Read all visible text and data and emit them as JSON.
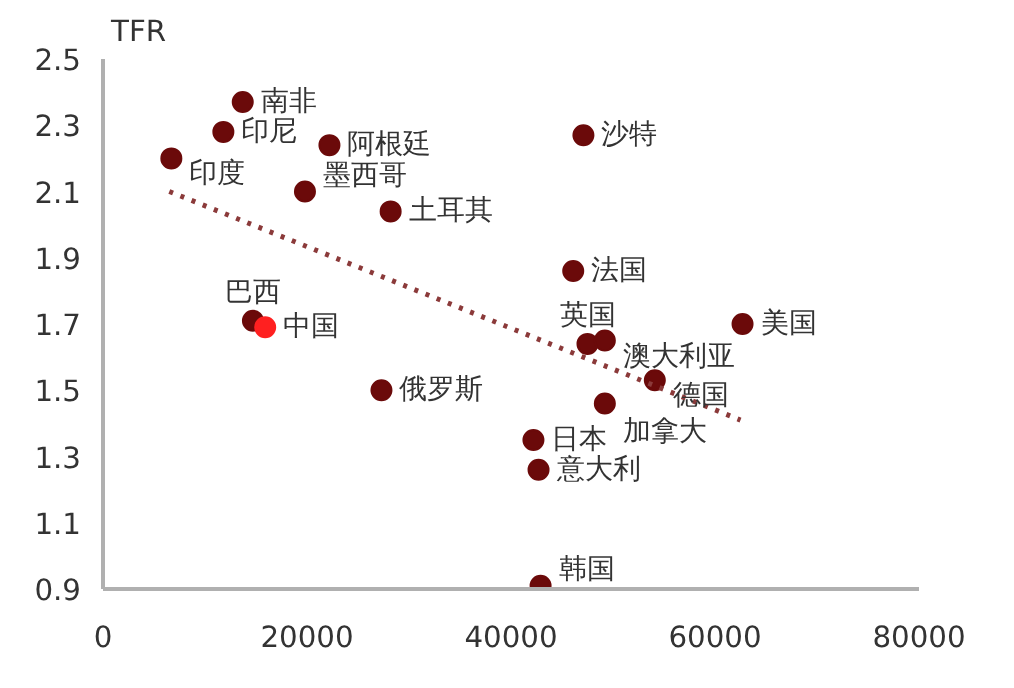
{
  "chart_data": {
    "type": "scatter",
    "ylabel": "TFR",
    "xlim": [
      0,
      80000
    ],
    "xticks": [
      0,
      20000,
      40000,
      60000,
      80000
    ],
    "ylim": [
      0.9,
      2.5
    ],
    "yticks": [
      0.9,
      1.1,
      1.3,
      1.5,
      1.7,
      1.9,
      2.1,
      2.3,
      2.5
    ],
    "grid": false,
    "marker": "circle",
    "series": [
      {
        "color": "#6b0a0a",
        "x": [
          6700,
          13700,
          11800,
          22200,
          19800,
          28200,
          47100,
          46100,
          14700,
          62700,
          47500,
          49200,
          54100,
          49200,
          27300,
          42200,
          42700,
          42900
        ],
        "values": [
          2.2,
          2.37,
          2.28,
          2.24,
          2.1,
          2.04,
          2.27,
          1.86,
          1.71,
          1.7,
          1.64,
          1.65,
          1.53,
          1.46,
          1.5,
          1.35,
          1.26,
          0.91
        ]
      },
      {
        "color": "#ff2020",
        "x": [
          15900
        ],
        "values": [
          1.69
        ]
      },
      {
        "type": "line",
        "color": "#8b3a3a",
        "line_style": "dotted",
        "marker": "none",
        "x": [
          6500,
          62500
        ],
        "values": [
          2.1,
          1.41
        ]
      }
    ],
    "annotations": [
      {
        "text": "南非",
        "x": 13700,
        "y": 2.37
      },
      {
        "text": "印尼",
        "x": 11800,
        "y": 2.28
      },
      {
        "text": "印度",
        "x": 6700,
        "y": 2.2
      },
      {
        "text": "阿根廷",
        "x": 22200,
        "y": 2.24
      },
      {
        "text": "墨西哥",
        "x": 19800,
        "y": 2.1
      },
      {
        "text": "土耳其",
        "x": 28200,
        "y": 2.04
      },
      {
        "text": "沙特",
        "x": 47100,
        "y": 2.27
      },
      {
        "text": "法国",
        "x": 46100,
        "y": 1.86
      },
      {
        "text": "中国",
        "x": 15900,
        "y": 1.69
      },
      {
        "text": "巴西",
        "x": 14700,
        "y": 1.71
      },
      {
        "text": "美国",
        "x": 62700,
        "y": 1.7
      },
      {
        "text": "澳大利亚",
        "x": 49200,
        "y": 1.65
      },
      {
        "text": "英国",
        "x": 47500,
        "y": 1.64
      },
      {
        "text": "德国",
        "x": 54100,
        "y": 1.53
      },
      {
        "text": "加拿大",
        "x": 49200,
        "y": 1.46
      },
      {
        "text": "俄罗斯",
        "x": 27300,
        "y": 1.5
      },
      {
        "text": "日本",
        "x": 42200,
        "y": 1.35
      },
      {
        "text": "意大利",
        "x": 42700,
        "y": 1.26
      },
      {
        "text": "韩国",
        "x": 42900,
        "y": 0.91
      }
    ]
  }
}
